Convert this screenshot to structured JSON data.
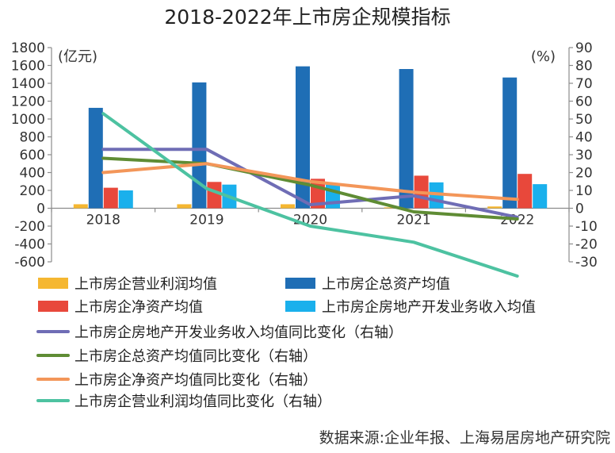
{
  "chart_data": {
    "type": "bar+line",
    "title": "2018-2022年上市房企规模指标",
    "categories": [
      "2018",
      "2019",
      "2020",
      "2021",
      "2022"
    ],
    "left_axis": {
      "unit_label": "(亿元)",
      "ylim": [
        -600,
        1800
      ],
      "step": 200,
      "ticks": [
        "1800",
        "1600",
        "1400",
        "1200",
        "1000",
        "800",
        "600",
        "400",
        "200",
        "0",
        "-200",
        "-400",
        "-600"
      ]
    },
    "right_axis": {
      "unit_label": "(%)",
      "ylim": [
        -30,
        90
      ],
      "step": 10,
      "ticks": [
        "90",
        "80",
        "70",
        "60",
        "50",
        "40",
        "30",
        "20",
        "10",
        "0",
        "-10",
        "-20",
        "-30"
      ]
    },
    "bar_series": [
      {
        "name": "上市房企营业利润均值",
        "color": "#f5b731",
        "values": [
          45,
          45,
          45,
          10,
          20
        ]
      },
      {
        "name": "上市房企总资产均值",
        "color": "#1f6eb5",
        "values": [
          1125,
          1410,
          1590,
          1560,
          1465
        ]
      },
      {
        "name": "上市房企净资产均值",
        "color": "#e8483b",
        "values": [
          230,
          295,
          330,
          365,
          385
        ]
      },
      {
        "name": "上市房企房地产开发业务收入均值",
        "color": "#1ab0ec",
        "values": [
          200,
          265,
          265,
          290,
          270
        ]
      }
    ],
    "line_series": [
      {
        "name": "上市房企房地产开发业务收入均值同比变化（右轴）",
        "color": "#6f6db5",
        "values": [
          33,
          33,
          2,
          7,
          -5
        ]
      },
      {
        "name": "上市房企总资产均值同比变化（右轴）",
        "color": "#5f8c34",
        "values": [
          28,
          25,
          13,
          -2,
          -6
        ]
      },
      {
        "name": "上市房企净资产均值同比变化（右轴）",
        "color": "#f39659",
        "values": [
          20,
          25,
          15,
          9,
          5
        ]
      },
      {
        "name": "上市房企营业利润均值同比变化（右轴）",
        "color": "#4dc2a1",
        "values": [
          53,
          11,
          -10,
          -19,
          -38
        ]
      }
    ],
    "source": "数据来源:企业年报、上海易居房地产研究院"
  }
}
